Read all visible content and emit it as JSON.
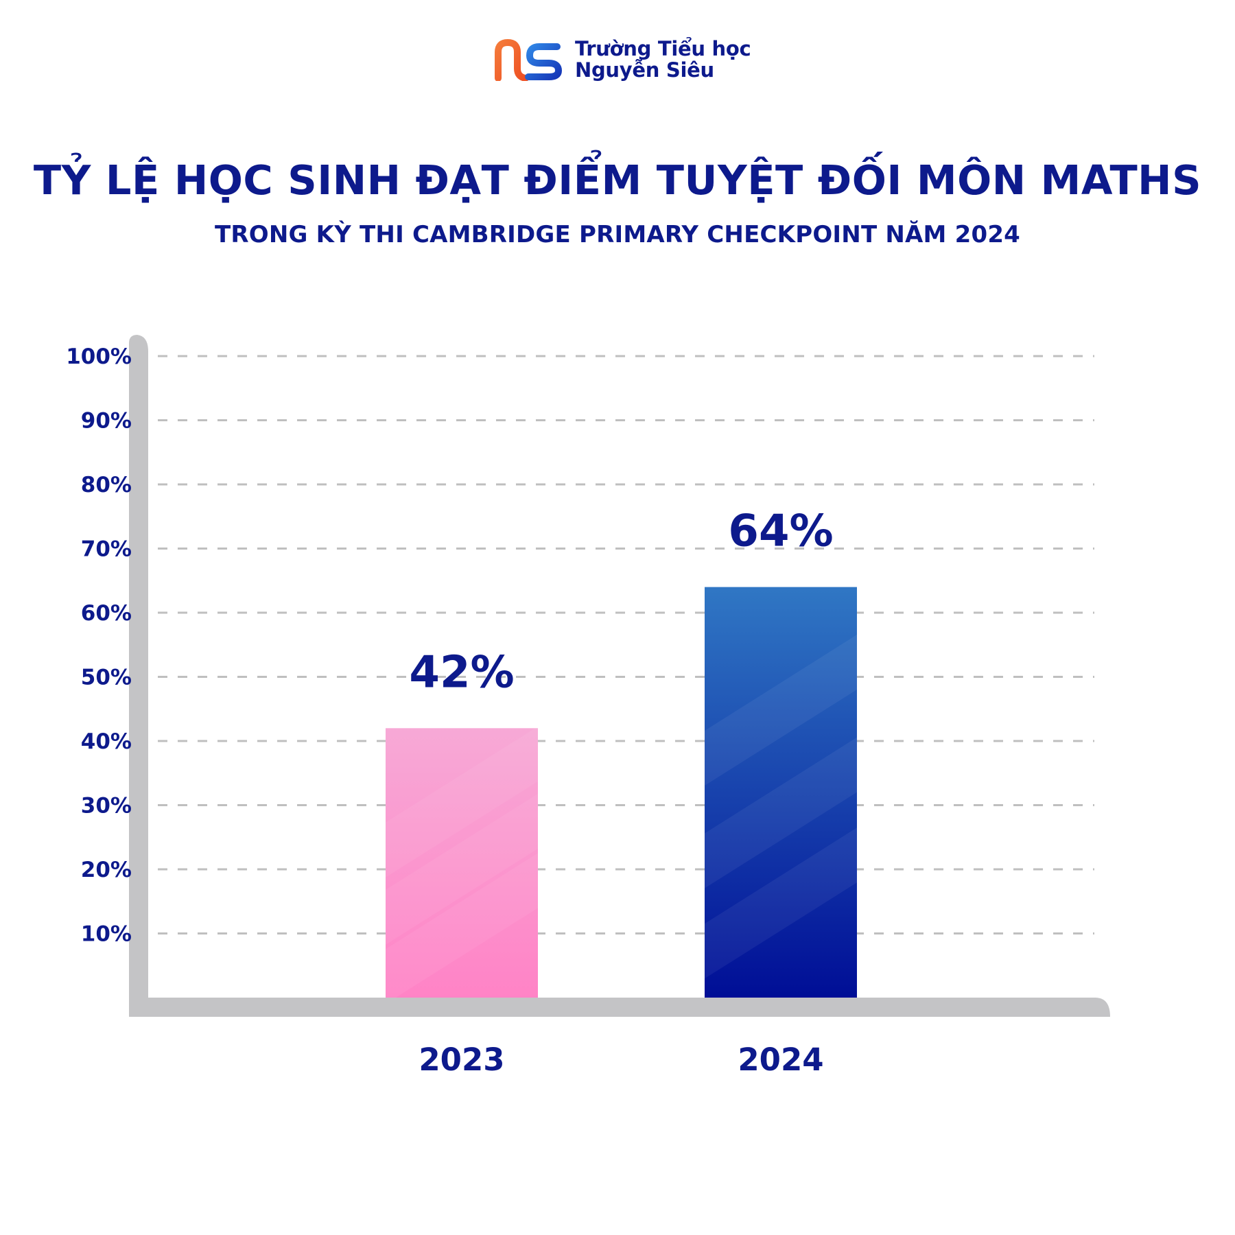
{
  "brand": {
    "line1": "Trường Tiểu học",
    "line2": "Nguyễn Siêu",
    "logo_icon": "ns-logo-icon",
    "colors": {
      "orange": "#f0602b",
      "blue": "#1c56d9",
      "dark_blue": "#0d1a8c"
    }
  },
  "header": {
    "title": "TỶ LỆ HỌC SINH ĐẠT ĐIỂM TUYỆT ĐỐI MÔN MATHS",
    "subtitle": "TRONG KỲ THI CAMBRIDGE PRIMARY CHECKPOINT NĂM 2024"
  },
  "chart_data": {
    "type": "bar",
    "title": "TỶ LỆ HỌC SINH ĐẠT ĐIỂM TUYỆT ĐỐI MÔN MATHS",
    "subtitle": "TRONG KỲ THI CAMBRIDGE PRIMARY CHECKPOINT NĂM 2024",
    "xlabel": "",
    "ylabel": "",
    "categories": [
      "2023",
      "2024"
    ],
    "values": [
      42,
      64
    ],
    "value_labels": [
      "42%",
      "64%"
    ],
    "ylim": [
      0,
      100
    ],
    "yticks": [
      10,
      20,
      30,
      40,
      50,
      60,
      70,
      80,
      90,
      100
    ],
    "ytick_labels": [
      "10%",
      "20%",
      "30%",
      "40%",
      "50%",
      "60%",
      "70%",
      "80%",
      "90%",
      "100%"
    ],
    "grid": true,
    "grid_style": "dashed",
    "legend": "none",
    "bar_colors": [
      {
        "top": "#f7a9d6",
        "bottom": "#ff83c6"
      },
      {
        "top": "#3077c4",
        "bottom": "#000e96"
      }
    ],
    "axis_color": "#c4c4c6",
    "grid_color": "#bfbfbf",
    "text_color": "#0d1a8c"
  }
}
